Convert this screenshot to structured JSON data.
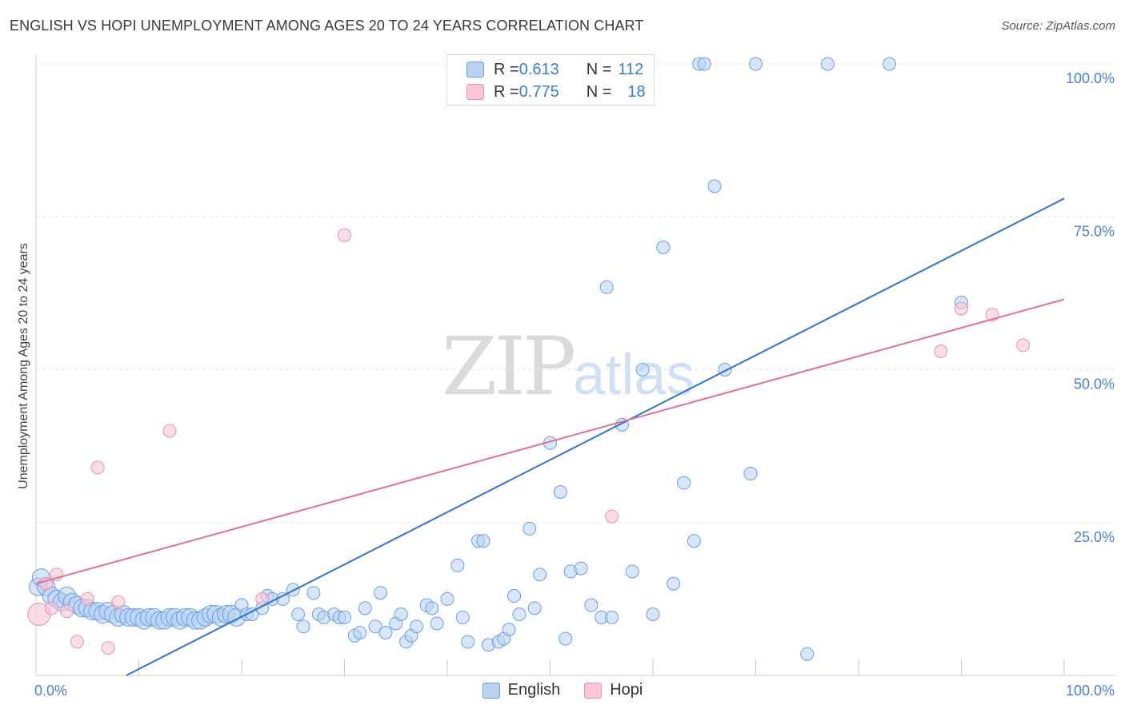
{
  "title": "ENGLISH VS HOPI UNEMPLOYMENT AMONG AGES 20 TO 24 YEARS CORRELATION CHART",
  "source": "Source: ZipAtlas.com",
  "watermark": {
    "zip": "ZIP",
    "atlas": "atlas"
  },
  "legend_top": {
    "english": {
      "r_label": "R = ",
      "r_value": "0.613",
      "n_label": "N = ",
      "n_value": "112"
    },
    "hopi": {
      "r_label": "R = ",
      "r_value": "0.775",
      "n_label": "N = ",
      "n_value": "18"
    }
  },
  "legend_bottom": {
    "english": "English",
    "hopi": "Hopi"
  },
  "colors": {
    "english_fill": "#b8d2f4",
    "english_stroke": "#6a9de0",
    "english_line": "#2f72d0",
    "hopi_fill": "#f8c6d6",
    "hopi_stroke": "#e98fae",
    "hopi_line": "#e0709a",
    "grid": "#e3e3e3",
    "axis_label": "#4a7fd0"
  },
  "chart_data": {
    "type": "scatter",
    "title": "ENGLISH VS HOPI UNEMPLOYMENT AMONG AGES 20 TO 24 YEARS CORRELATION CHART",
    "xlabel": "",
    "ylabel": "Unemployment Among Ages 20 to 24 years",
    "xlim": [
      0,
      100
    ],
    "ylim": [
      0,
      100
    ],
    "x_tick_labels": [
      "0.0%",
      "100.0%"
    ],
    "y_tick_labels": [
      "25.0%",
      "50.0%",
      "75.0%",
      "100.0%"
    ],
    "y_ticks": [
      25,
      50,
      75,
      100
    ],
    "series": [
      {
        "name": "English",
        "r": 0.613,
        "n": 112,
        "trend": {
          "x": [
            0,
            100
          ],
          "y": [
            -7.5,
            78
          ]
        },
        "points": [
          [
            0.2,
            14.5
          ],
          [
            0.5,
            16
          ],
          [
            1,
            14.5
          ],
          [
            1.5,
            13
          ],
          [
            2,
            12.5
          ],
          [
            2.5,
            12
          ],
          [
            3,
            13
          ],
          [
            3.5,
            12
          ],
          [
            4,
            11.5
          ],
          [
            4.5,
            11
          ],
          [
            5,
            11
          ],
          [
            5.5,
            10.5
          ],
          [
            6,
            10.5
          ],
          [
            6.5,
            10
          ],
          [
            7,
            10.5
          ],
          [
            7.5,
            10
          ],
          [
            8,
            9.5
          ],
          [
            8.5,
            10
          ],
          [
            9,
            9.5
          ],
          [
            9.5,
            9.5
          ],
          [
            10,
            9.5
          ],
          [
            10.5,
            9
          ],
          [
            11,
            9.5
          ],
          [
            11.5,
            9.5
          ],
          [
            12,
            9
          ],
          [
            12.5,
            9
          ],
          [
            13,
            9.5
          ],
          [
            13.5,
            9.5
          ],
          [
            14,
            9
          ],
          [
            14.5,
            9.5
          ],
          [
            15,
            9.5
          ],
          [
            15.5,
            9
          ],
          [
            16,
            9
          ],
          [
            16.5,
            9.5
          ],
          [
            17,
            10
          ],
          [
            17.5,
            10
          ],
          [
            18,
            9.5
          ],
          [
            18.5,
            10
          ],
          [
            19,
            10
          ],
          [
            19.5,
            9.5
          ],
          [
            20,
            11.5
          ],
          [
            20.5,
            10
          ],
          [
            21,
            10
          ],
          [
            22,
            11
          ],
          [
            22.5,
            13
          ],
          [
            23,
            12.5
          ],
          [
            24,
            12.5
          ],
          [
            25,
            14
          ],
          [
            25.5,
            10
          ],
          [
            26,
            8
          ],
          [
            27,
            13.5
          ],
          [
            27.5,
            10
          ],
          [
            28,
            9.5
          ],
          [
            29,
            10
          ],
          [
            29.5,
            9.5
          ],
          [
            30,
            9.5
          ],
          [
            31,
            6.5
          ],
          [
            31.5,
            7
          ],
          [
            32,
            11
          ],
          [
            33,
            8
          ],
          [
            33.5,
            13.5
          ],
          [
            34,
            7
          ],
          [
            35,
            8.5
          ],
          [
            35.5,
            10
          ],
          [
            36,
            5.5
          ],
          [
            36.5,
            6.5
          ],
          [
            37,
            8
          ],
          [
            38,
            11.5
          ],
          [
            38.5,
            11
          ],
          [
            39,
            8.5
          ],
          [
            40,
            12.5
          ],
          [
            41,
            18
          ],
          [
            41.5,
            9.5
          ],
          [
            42,
            5.5
          ],
          [
            43,
            22
          ],
          [
            43.5,
            22
          ],
          [
            44,
            5
          ],
          [
            45,
            5.5
          ],
          [
            45.5,
            6
          ],
          [
            46,
            7.5
          ],
          [
            46.5,
            13
          ],
          [
            47,
            10
          ],
          [
            48,
            24
          ],
          [
            48.5,
            11
          ],
          [
            49,
            16.5
          ],
          [
            50,
            38
          ],
          [
            51,
            30
          ],
          [
            51.5,
            6
          ],
          [
            52,
            17
          ],
          [
            53,
            17.5
          ],
          [
            54,
            11.5
          ],
          [
            55,
            9.5
          ],
          [
            55.5,
            63.5
          ],
          [
            56,
            9.5
          ],
          [
            57,
            41
          ],
          [
            58,
            17
          ],
          [
            59,
            50
          ],
          [
            60,
            10
          ],
          [
            61,
            70
          ],
          [
            62,
            15
          ],
          [
            63,
            31.5
          ],
          [
            64,
            22
          ],
          [
            64.5,
            100
          ],
          [
            65,
            100
          ],
          [
            66,
            80
          ],
          [
            67,
            50
          ],
          [
            69.5,
            33
          ],
          [
            70,
            100
          ],
          [
            75,
            3.5
          ],
          [
            77,
            100
          ],
          [
            83,
            100
          ],
          [
            90,
            61
          ]
        ]
      },
      {
        "name": "Hopi",
        "r": 0.775,
        "n": 18,
        "trend": {
          "x": [
            0,
            100
          ],
          "y": [
            15,
            61.5
          ]
        },
        "points": [
          [
            0.3,
            10
          ],
          [
            1,
            15
          ],
          [
            1.5,
            11
          ],
          [
            2,
            16.5
          ],
          [
            3,
            10.5
          ],
          [
            4,
            5.5
          ],
          [
            5,
            12.5
          ],
          [
            6,
            34
          ],
          [
            7,
            4.5
          ],
          [
            8,
            12
          ],
          [
            13,
            40
          ],
          [
            22,
            12.5
          ],
          [
            30,
            72
          ],
          [
            56,
            26
          ],
          [
            88,
            53
          ],
          [
            90,
            60
          ],
          [
            93,
            59
          ],
          [
            96,
            54
          ]
        ]
      }
    ],
    "legend": "top-center"
  }
}
